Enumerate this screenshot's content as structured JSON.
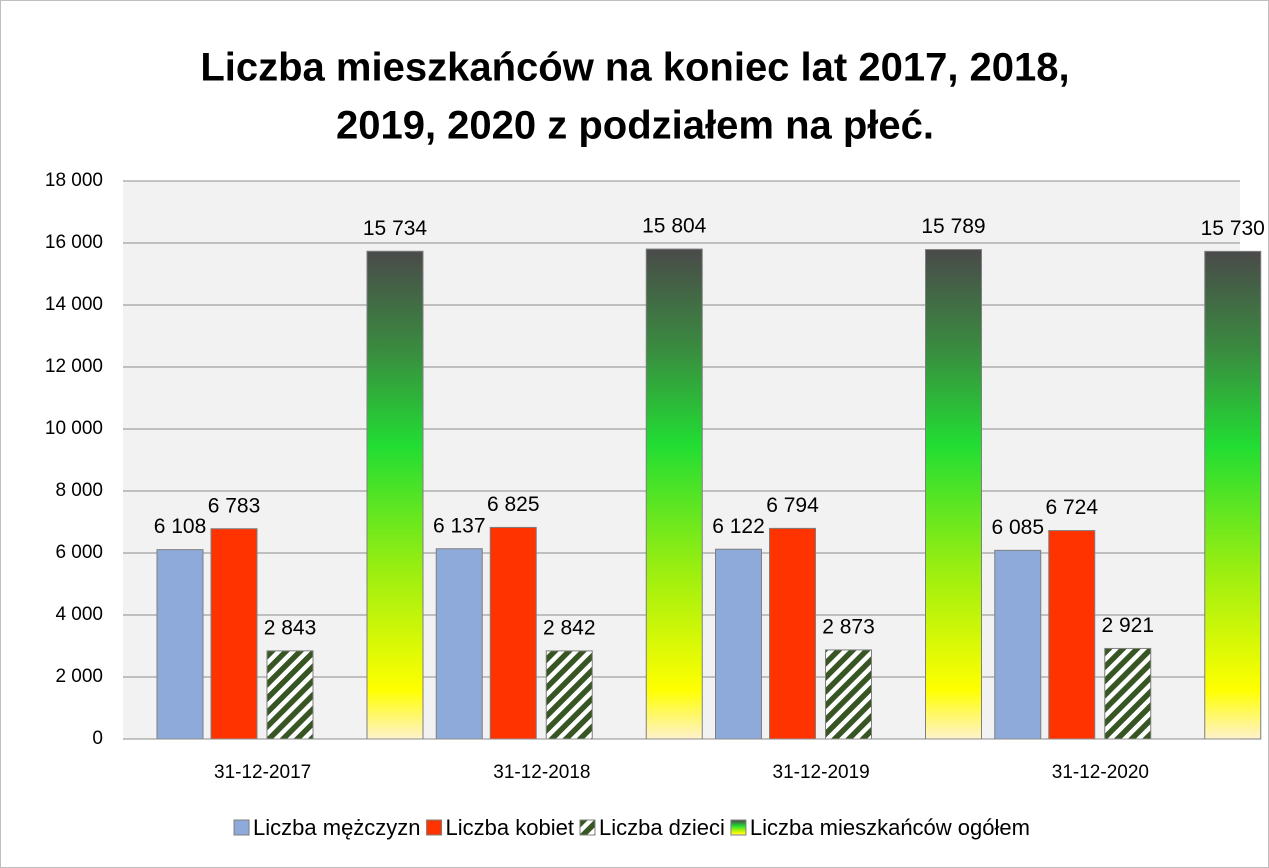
{
  "chart_data": {
    "type": "bar",
    "title": [
      "Liczba mieszkańców na koniec lat 2017, 2018,",
      "2019, 2020 z podziałem na płeć."
    ],
    "categories": [
      "31-12-2017",
      "31-12-2018",
      "31-12-2019",
      "31-12-2020"
    ],
    "series": [
      {
        "name": "Liczba mężczyzn",
        "color": "#8eaadb",
        "fill_style": "solid",
        "values": [
          6108,
          6137,
          6122,
          6085
        ],
        "value_labels": [
          "6 108",
          "6 137",
          "6 122",
          "6 085"
        ]
      },
      {
        "name": "Liczba kobiet",
        "color": "#ff3300",
        "fill_style": "solid",
        "values": [
          6783,
          6825,
          6794,
          6724
        ],
        "value_labels": [
          "6 783",
          "6 825",
          "6 794",
          "6 724"
        ]
      },
      {
        "name": "Liczba dzieci",
        "color": "#375623",
        "fill_style": "hatch",
        "values": [
          2843,
          2842,
          2873,
          2921
        ],
        "value_labels": [
          "2 843",
          "2 842",
          "2 873",
          "2 921"
        ]
      },
      {
        "name": "Liczba mieszkańców ogółem",
        "color": "#22dd33",
        "fill_style": "gradient",
        "values": [
          15734,
          15804,
          15789,
          15730
        ],
        "value_labels": [
          "15 734",
          "15 804",
          "15 789",
          "15 730"
        ]
      }
    ],
    "ylim": [
      0,
      18000
    ],
    "yticks": [
      0,
      {
        "value": 2000,
        "label": "2 000"
      },
      {
        "value": 4000,
        "label": "4 000"
      },
      {
        "value": 6000,
        "label": "6 000"
      },
      {
        "value": 8000,
        "label": "8 000"
      },
      {
        "value": 10000,
        "label": "10 000"
      },
      {
        "value": 12000,
        "label": "12 000"
      },
      {
        "value": 14000,
        "label": "14 000"
      },
      {
        "value": 16000,
        "label": "16 000"
      },
      {
        "value": 18000,
        "label": "18 000"
      }
    ],
    "grid": true,
    "legend": "bottom"
  }
}
